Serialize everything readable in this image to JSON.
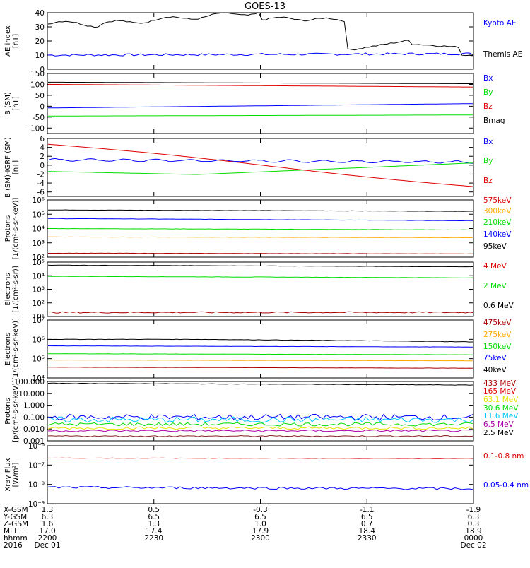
{
  "title": "GOES-13",
  "colors": {
    "black": "#000000",
    "blue": "#0000ff",
    "red": "#dd0000",
    "green": "#00dd00",
    "orange": "#ffaa00",
    "darkred": "#aa0000",
    "yellow": "#e6e600",
    "cyan": "#00c8ff",
    "purple": "#aa00aa",
    "brown": "#882222"
  },
  "chart_data": [
    {
      "id": "ae",
      "type": "line",
      "ylabel": "AE index\n[nT]",
      "ylim": [
        0,
        40
      ],
      "yscale": "linear",
      "yticks": [
        0,
        10,
        20,
        30,
        40
      ],
      "legend": [
        {
          "label": "Kyoto AE",
          "color": "#0000ff"
        },
        {
          "label": "Themis AE",
          "color": "#000000"
        }
      ]
    },
    {
      "id": "bsm",
      "type": "line",
      "ylabel": "B (SM)\n[nT]",
      "ylim": [
        -125,
        150
      ],
      "yscale": "linear",
      "yticks": [
        -100,
        -50,
        0,
        50,
        100,
        150
      ],
      "legend": [
        {
          "label": "Bx",
          "color": "#0000ff"
        },
        {
          "label": "By",
          "color": "#00dd00"
        },
        {
          "label": "Bz",
          "color": "#dd0000"
        },
        {
          "label": "Bmag",
          "color": "#000000"
        }
      ]
    },
    {
      "id": "bigrf",
      "type": "line",
      "ylabel": "B (SM)-IGRF (SM)\n[nT]",
      "ylim": [
        -7,
        6
      ],
      "yscale": "linear",
      "yticks": [
        -6,
        -4,
        -2,
        0,
        2,
        4,
        6
      ],
      "legend": [
        {
          "label": "Bx",
          "color": "#0000ff"
        },
        {
          "label": "By",
          "color": "#00dd00"
        },
        {
          "label": "Bz",
          "color": "#dd0000"
        }
      ]
    },
    {
      "id": "protons1",
      "type": "line",
      "ylabel": "Protons\n[1/(cm²-s-sr-keV)]",
      "ylim": [
        100,
        1000000
      ],
      "yscale": "log",
      "yticks": [
        {
          "v": 100,
          "l": "10²"
        },
        {
          "v": 1000,
          "l": "10³"
        },
        {
          "v": 10000,
          "l": "10⁴"
        },
        {
          "v": 100000,
          "l": "10⁵"
        },
        {
          "v": 1000000,
          "l": "10⁶"
        }
      ],
      "legend": [
        {
          "label": "575keV",
          "color": "#dd0000"
        },
        {
          "label": "300keV",
          "color": "#ffaa00"
        },
        {
          "label": "210keV",
          "color": "#00dd00"
        },
        {
          "label": "140keV",
          "color": "#0000ff"
        },
        {
          "label": "95keV",
          "color": "#000000"
        }
      ]
    },
    {
      "id": "electrons1",
      "type": "line",
      "ylabel": "Electrons\n[1/(cm²-s-sr)]",
      "ylim": [
        10,
        100000
      ],
      "yscale": "log",
      "yticks": [
        {
          "v": 10,
          "l": "10¹"
        },
        {
          "v": 100,
          "l": "10²"
        },
        {
          "v": 1000,
          "l": "10³"
        },
        {
          "v": 10000,
          "l": "10⁴"
        },
        {
          "v": 100000,
          "l": "10⁵"
        }
      ],
      "legend": [
        {
          "label": "4 MeV",
          "color": "#dd0000"
        },
        {
          "label": "2 MeV",
          "color": "#00dd00"
        },
        {
          "label": "0.6 MeV",
          "color": "#000000"
        }
      ]
    },
    {
      "id": "electrons2",
      "type": "line",
      "ylabel": "Electrons\n[1/(cm²-s-sr-keV)]",
      "ylim": [
        10000,
        10000000
      ],
      "yscale": "log",
      "yticks": [
        {
          "v": 10000,
          "l": "10⁴"
        },
        {
          "v": 100000,
          "l": "10⁵"
        },
        {
          "v": 1000000,
          "l": "10⁶"
        },
        {
          "v": 10000000,
          "l": "10⁷"
        }
      ],
      "legend": [
        {
          "label": "475keV",
          "color": "#aa0000"
        },
        {
          "label": "275keV",
          "color": "#ffaa00"
        },
        {
          "label": "150keV",
          "color": "#00dd00"
        },
        {
          "label": "75keV",
          "color": "#0000ff"
        },
        {
          "label": "40keV",
          "color": "#000000"
        }
      ]
    },
    {
      "id": "protons2",
      "type": "line",
      "ylabel": "Protons\n[p/(cm²-s-sr-keV)]",
      "ylim": [
        0.001,
        100
      ],
      "yscale": "log",
      "yticks": [
        {
          "v": 0.001,
          "l": "0.001"
        },
        {
          "v": 0.01,
          "l": "0.010"
        },
        {
          "v": 0.1,
          "l": "0.100"
        },
        {
          "v": 1,
          "l": "1.000"
        },
        {
          "v": 10,
          "l": "10.000"
        },
        {
          "v": 100,
          "l": "100.000"
        }
      ],
      "legend": [
        {
          "label": "433 MeV",
          "color": "#aa0000"
        },
        {
          "label": "165 MeV",
          "color": "#dd0000"
        },
        {
          "label": "63.1 MeV",
          "color": "#e6e600"
        },
        {
          "label": "30.6 MeV",
          "color": "#00dd00"
        },
        {
          "label": "11.6 MeV",
          "color": "#00c8ff"
        },
        {
          "label": "6.5 MeV",
          "color": "#aa00aa"
        },
        {
          "label": "2.5 MeV",
          "color": "#000000"
        }
      ]
    },
    {
      "id": "xray",
      "type": "line",
      "ylabel": "Xray Flux\n[W/m²]",
      "ylim": [
        1e-09,
        1e-06
      ],
      "yscale": "log",
      "yticks": [
        {
          "v": 1e-09,
          "l": "10⁻⁹"
        },
        {
          "v": 1e-08,
          "l": "10⁻⁸"
        },
        {
          "v": 1e-07,
          "l": "10⁻⁷"
        },
        {
          "v": 1e-06,
          "l": "10⁻⁶"
        }
      ],
      "legend": [
        {
          "label": "0.1-0.8 nm",
          "color": "#dd0000"
        },
        {
          "label": "0.05-0.4 nm",
          "color": "#0000ff"
        }
      ]
    }
  ],
  "footer": {
    "labels": [
      "X-GSM",
      "Y-GSM",
      "Z-GSM",
      "MLT",
      "hhmm",
      "2016"
    ],
    "columns": [
      [
        "1.3",
        "6.3",
        "1.6",
        "17.0",
        "2200",
        "Dec 01"
      ],
      [
        "0.5",
        "6.5",
        "1.3",
        "17.4",
        "2230",
        ""
      ],
      [
        "-0.3",
        "6.5",
        "1.0",
        "17.9",
        "2300",
        ""
      ],
      [
        "-1.1",
        "6.5",
        "0.7",
        "18.4",
        "2330",
        ""
      ],
      [
        "-1.9",
        "6.3",
        "0.3",
        "18.9",
        "0000",
        "Dec 02"
      ]
    ]
  }
}
